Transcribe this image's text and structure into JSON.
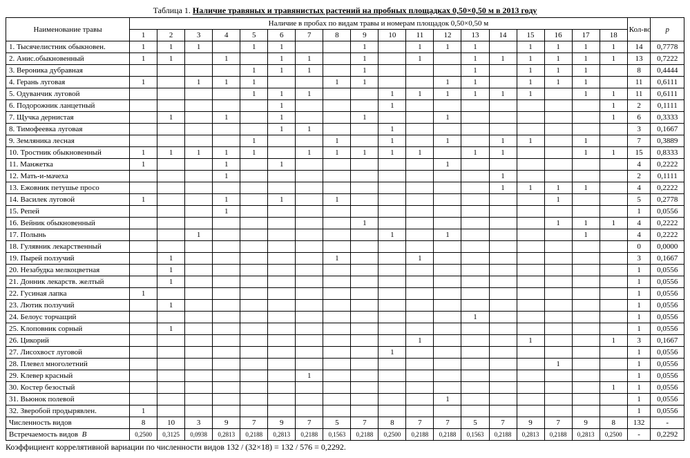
{
  "title_plain": "Таблица 1. ",
  "title_bold": "Наличие травяных и травянистых растений на пробных площадках 0,50×0,50 м в 2013 году",
  "h": {
    "name": "Наименование травы",
    "top": "Наличие в пробах по видам травы и номерам площадок 0,50×0,50 м",
    "kol": "Кол-во",
    "p": "p"
  },
  "cols": [
    "1",
    "2",
    "3",
    "4",
    "5",
    "6",
    "7",
    "8",
    "9",
    "10",
    "11",
    "12",
    "13",
    "14",
    "15",
    "16",
    "17",
    "18"
  ],
  "rows": [
    {
      "n": "1. Тысячелистник обыкновен.",
      "v": [
        "1",
        "1",
        "1",
        "",
        "1",
        "1",
        "",
        "",
        "1",
        "",
        "1",
        "1",
        "1",
        "",
        "1",
        "1",
        "1",
        "1"
      ],
      "k": "14",
      "p": "0,7778"
    },
    {
      "n": "2. Анис.обыкновенный",
      "v": [
        "1",
        "1",
        "",
        "1",
        "",
        "1",
        "1",
        "",
        "1",
        "",
        "1",
        "",
        "1",
        "1",
        "1",
        "1",
        "1",
        "1"
      ],
      "k": "13",
      "p": "0,7222"
    },
    {
      "n": "3. Вероника дубравная",
      "v": [
        "",
        "",
        "",
        "",
        "1",
        "1",
        "1",
        "",
        "1",
        "",
        "",
        "",
        "1",
        "",
        "1",
        "1",
        "1",
        ""
      ],
      "k": "8",
      "p": "0,4444"
    },
    {
      "n": "4. Герань луговая",
      "v": [
        "1",
        "",
        "1",
        "1",
        "1",
        "",
        "",
        "1",
        "1",
        "",
        "",
        "1",
        "1",
        "",
        "1",
        "1",
        "1",
        ""
      ],
      "k": "11",
      "p": "0,6111"
    },
    {
      "n": "5. Одуванчик луговой",
      "v": [
        "",
        "",
        "",
        "",
        "1",
        "1",
        "1",
        "",
        "",
        "1",
        "1",
        "1",
        "1",
        "1",
        "1",
        "",
        "1",
        "1"
      ],
      "k": "11",
      "p": "0,6111"
    },
    {
      "n": "6. Подорожник ланцетный",
      "v": [
        "",
        "",
        "",
        "",
        "",
        "1",
        "",
        "",
        "",
        "1",
        "",
        "",
        "",
        "",
        "",
        "",
        "",
        "1"
      ],
      "k": "2",
      "p": "0,1111"
    },
    {
      "n": "7. Щучка дернистая",
      "v": [
        "",
        "1",
        "",
        "1",
        "",
        "1",
        "",
        "",
        "1",
        "",
        "",
        "1",
        "",
        "",
        "",
        "",
        "",
        "1"
      ],
      "k": "6",
      "p": "0,3333"
    },
    {
      "n": "8. Тимофеевка луговая",
      "v": [
        "",
        "",
        "",
        "",
        "",
        "1",
        "1",
        "",
        "",
        "1",
        "",
        "",
        "",
        "",
        "",
        "",
        "",
        ""
      ],
      "k": "3",
      "p": "0,1667"
    },
    {
      "n": "9. Земляника лесная",
      "v": [
        "",
        "",
        "",
        "",
        "1",
        "",
        "",
        "1",
        "",
        "1",
        "",
        "1",
        "",
        "1",
        "1",
        "",
        "1",
        ""
      ],
      "k": "7",
      "p": "0,3889"
    },
    {
      "n": "10. Тростник обыкновенный",
      "v": [
        "1",
        "1",
        "1",
        "1",
        "1",
        "",
        "1",
        "1",
        "1",
        "1",
        "1",
        "",
        "1",
        "1",
        "",
        "",
        "1",
        "1"
      ],
      "k": "15",
      "p": "0,8333"
    },
    {
      "n": "11. Манжетка",
      "v": [
        "1",
        "",
        "",
        "1",
        "",
        "1",
        "",
        "",
        "",
        "",
        "",
        "1",
        "",
        "",
        "",
        "",
        "",
        ""
      ],
      "k": "4",
      "p": "0,2222"
    },
    {
      "n": "12. Мать-и-мачеха",
      "v": [
        "",
        "",
        "",
        "1",
        "",
        "",
        "",
        "",
        "",
        "",
        "",
        "",
        "",
        "1",
        "",
        "",
        "",
        ""
      ],
      "k": "2",
      "p": "0,1111"
    },
    {
      "n": "13. Ежовник петушье просо",
      "v": [
        "",
        "",
        "",
        "",
        "",
        "",
        "",
        "",
        "",
        "",
        "",
        "",
        "",
        "1",
        "1",
        "1",
        "1",
        ""
      ],
      "k": "4",
      "p": "0,2222"
    },
    {
      "n": "14. Василек луговой",
      "v": [
        "1",
        "",
        "",
        "1",
        "",
        "1",
        "",
        "1",
        "",
        "",
        "",
        "",
        "",
        "",
        "",
        "1",
        "",
        ""
      ],
      "k": "5",
      "p": "0,2778"
    },
    {
      "n": "15. Репей",
      "v": [
        "",
        "",
        "",
        "1",
        "",
        "",
        "",
        "",
        "",
        "",
        "",
        "",
        "",
        "",
        "",
        "",
        "",
        ""
      ],
      "k": "1",
      "p": "0,0556"
    },
    {
      "n": "16. Вейник обыкновенный",
      "v": [
        "",
        "",
        "",
        "",
        "",
        "",
        "",
        "",
        "1",
        "",
        "",
        "",
        "",
        "",
        "",
        "1",
        "1",
        "1"
      ],
      "k": "4",
      "p": "0,2222"
    },
    {
      "n": "17. Полынь",
      "v": [
        "",
        "",
        "1",
        "",
        "",
        "",
        "",
        "",
        "",
        "1",
        "",
        "1",
        "",
        "",
        "",
        "",
        "1",
        ""
      ],
      "k": "4",
      "p": "0,2222"
    },
    {
      "n": "18. Гулявник лекарственный",
      "v": [
        "",
        "",
        "",
        "",
        "",
        "",
        "",
        "",
        "",
        "",
        "",
        "",
        "",
        "",
        "",
        "",
        "",
        ""
      ],
      "k": "0",
      "p": "0,0000"
    },
    {
      "n": "19. Пырей ползучий",
      "v": [
        "",
        "1",
        "",
        "",
        "",
        "",
        "",
        "1",
        "",
        "",
        "1",
        "",
        "",
        "",
        "",
        "",
        "",
        ""
      ],
      "k": "3",
      "p": "0,1667"
    },
    {
      "n": "20. Незабудка мелкоцветная",
      "v": [
        "",
        "1",
        "",
        "",
        "",
        "",
        "",
        "",
        "",
        "",
        "",
        "",
        "",
        "",
        "",
        "",
        "",
        ""
      ],
      "k": "1",
      "p": "0,0556"
    },
    {
      "n": "21. Донник лекарств. желтый",
      "v": [
        "",
        "1",
        "",
        "",
        "",
        "",
        "",
        "",
        "",
        "",
        "",
        "",
        "",
        "",
        "",
        "",
        "",
        ""
      ],
      "k": "1",
      "p": "0,0556"
    },
    {
      "n": "22. Гусиная лапка",
      "v": [
        "1",
        "",
        "",
        "",
        "",
        "",
        "",
        "",
        "",
        "",
        "",
        "",
        "",
        "",
        "",
        "",
        "",
        ""
      ],
      "k": "1",
      "p": "0,0556"
    },
    {
      "n": "23. Лютик ползучий",
      "v": [
        "",
        "1",
        "",
        "",
        "",
        "",
        "",
        "",
        "",
        "",
        "",
        "",
        "",
        "",
        "",
        "",
        "",
        ""
      ],
      "k": "1",
      "p": "0,0556"
    },
    {
      "n": "24. Белоус торчащий",
      "v": [
        "",
        "",
        "",
        "",
        "",
        "",
        "",
        "",
        "",
        "",
        "",
        "",
        "1",
        "",
        "",
        "",
        "",
        ""
      ],
      "k": "1",
      "p": "0,0556"
    },
    {
      "n": "25. Клоповник сорный",
      "v": [
        "",
        "1",
        "",
        "",
        "",
        "",
        "",
        "",
        "",
        "",
        "",
        "",
        "",
        "",
        "",
        "",
        "",
        ""
      ],
      "k": "1",
      "p": "0,0556"
    },
    {
      "n": "26. Цикорий",
      "v": [
        "",
        "",
        "",
        "",
        "",
        "",
        "",
        "",
        "",
        "",
        "1",
        "",
        "",
        "",
        "1",
        "",
        "",
        "1"
      ],
      "k": "3",
      "p": "0,1667"
    },
    {
      "n": "27. Лисохвост луговой",
      "v": [
        "",
        "",
        "",
        "",
        "",
        "",
        "",
        "",
        "",
        "1",
        "",
        "",
        "",
        "",
        "",
        "",
        "",
        ""
      ],
      "k": "1",
      "p": "0,0556"
    },
    {
      "n": "28. Плевел многолетний",
      "v": [
        "",
        "",
        "",
        "",
        "",
        "",
        "",
        "",
        "",
        "",
        "",
        "",
        "",
        "",
        "",
        "1",
        "",
        ""
      ],
      "k": "1",
      "p": "0,0556"
    },
    {
      "n": "29. Клевер красный",
      "v": [
        "",
        "",
        "",
        "",
        "",
        "",
        "1",
        "",
        "",
        "",
        "",
        "",
        "",
        "",
        "",
        "",
        "",
        ""
      ],
      "k": "1",
      "p": "0,0556"
    },
    {
      "n": "30. Костер безостый",
      "v": [
        "",
        "",
        "",
        "",
        "",
        "",
        "",
        "",
        "",
        "",
        "",
        "",
        "",
        "",
        "",
        "",
        "",
        "1"
      ],
      "k": "1",
      "p": "0,0556"
    },
    {
      "n": "31. Вьюнок полевой",
      "v": [
        "",
        "",
        "",
        "",
        "",
        "",
        "",
        "",
        "",
        "",
        "",
        "1",
        "",
        "",
        "",
        "",
        "",
        ""
      ],
      "k": "1",
      "p": "0,0556"
    },
    {
      "n": "32. Зверобой продырявлен.",
      "v": [
        "1",
        "",
        "",
        "",
        "",
        "",
        "",
        "",
        "",
        "",
        "",
        "",
        "",
        "",
        "",
        "",
        "",
        ""
      ],
      "k": "1",
      "p": "0,0556"
    }
  ],
  "sum1": {
    "n": "Численность видов",
    "v": [
      "8",
      "10",
      "3",
      "9",
      "7",
      "9",
      "7",
      "5",
      "7",
      "8",
      "7",
      "7",
      "5",
      "7",
      "9",
      "7",
      "9",
      "8"
    ],
    "k": "132",
    "p": "-"
  },
  "sum2": {
    "n": "Встречаемость видов  B",
    "v": [
      "0,2500",
      "0,3125",
      "0,0938",
      "0,2813",
      "0,2188",
      "0,2813",
      "0,2188",
      "0,1563",
      "0,2188",
      "0,2500",
      "0,2188",
      "0,2188",
      "0,1563",
      "0,2188",
      "0,2813",
      "0,2188",
      "0,2813",
      "0,2500"
    ],
    "k": "-",
    "p": "0,2292"
  },
  "footer": "Коэффициент коррелятивной вариации по численности видов 132 / (32×18) = 132 / 576 = 0,2292."
}
